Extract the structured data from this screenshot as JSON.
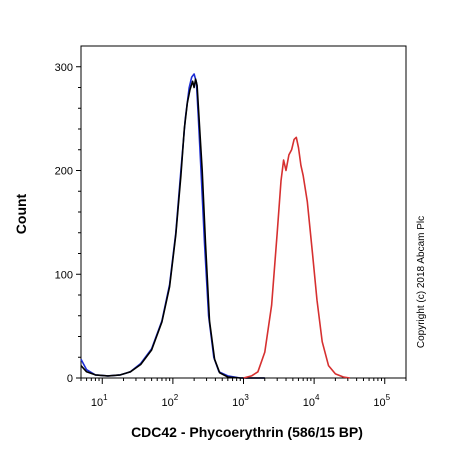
{
  "chart_data": {
    "type": "line",
    "xlabel": "CDC42 - Phycoerythrin (586/15 BP)",
    "ylabel": "Count",
    "x_scale": "log",
    "xlim": [
      5,
      200000
    ],
    "ylim": [
      0,
      320
    ],
    "y_ticks": [
      {
        "value": 0,
        "label": "0"
      },
      {
        "value": 100,
        "label": "100"
      },
      {
        "value": 200,
        "label": "200"
      },
      {
        "value": 300,
        "label": "300"
      }
    ],
    "x_ticks": [
      {
        "value": 10,
        "base": "10",
        "exp": "1"
      },
      {
        "value": 100,
        "base": "10",
        "exp": "2"
      },
      {
        "value": 1000,
        "base": "10",
        "exp": "3"
      },
      {
        "value": 10000,
        "base": "10",
        "exp": "4"
      },
      {
        "value": 100000,
        "base": "10",
        "exp": "5"
      }
    ],
    "annotation": "Copyright (c) 2018 Abcam Plc",
    "grid": false,
    "series": [
      {
        "color": "#1f2fd6",
        "points": [
          [
            5,
            18
          ],
          [
            6,
            8
          ],
          [
            8,
            3
          ],
          [
            12,
            2
          ],
          [
            18,
            3
          ],
          [
            25,
            6
          ],
          [
            35,
            14
          ],
          [
            50,
            28
          ],
          [
            70,
            55
          ],
          [
            90,
            90
          ],
          [
            110,
            140
          ],
          [
            130,
            200
          ],
          [
            150,
            250
          ],
          [
            170,
            280
          ],
          [
            185,
            290
          ],
          [
            200,
            293
          ],
          [
            215,
            285
          ],
          [
            230,
            250
          ],
          [
            250,
            200
          ],
          [
            280,
            130
          ],
          [
            320,
            60
          ],
          [
            380,
            20
          ],
          [
            450,
            6
          ],
          [
            600,
            2
          ],
          [
            900,
            0
          ],
          [
            2000,
            0
          ]
        ]
      },
      {
        "color": "#000000",
        "points": [
          [
            5,
            12
          ],
          [
            6,
            6
          ],
          [
            8,
            3
          ],
          [
            12,
            2
          ],
          [
            18,
            3
          ],
          [
            25,
            6
          ],
          [
            35,
            13
          ],
          [
            50,
            27
          ],
          [
            70,
            54
          ],
          [
            90,
            88
          ],
          [
            110,
            138
          ],
          [
            130,
            195
          ],
          [
            145,
            240
          ],
          [
            160,
            265
          ],
          [
            175,
            278
          ],
          [
            190,
            286
          ],
          [
            200,
            280
          ],
          [
            210,
            288
          ],
          [
            220,
            282
          ],
          [
            240,
            240
          ],
          [
            260,
            200
          ],
          [
            290,
            130
          ],
          [
            330,
            55
          ],
          [
            390,
            18
          ],
          [
            460,
            5
          ],
          [
            600,
            1
          ],
          [
            900,
            0
          ],
          [
            2000,
            0
          ]
        ]
      },
      {
        "color": "#d63030",
        "points": [
          [
            1000,
            0
          ],
          [
            1300,
            2
          ],
          [
            1600,
            6
          ],
          [
            2000,
            25
          ],
          [
            2500,
            70
          ],
          [
            3000,
            140
          ],
          [
            3400,
            190
          ],
          [
            3700,
            210
          ],
          [
            4000,
            200
          ],
          [
            4400,
            215
          ],
          [
            4800,
            220
          ],
          [
            5200,
            230
          ],
          [
            5600,
            232
          ],
          [
            6000,
            222
          ],
          [
            6500,
            205
          ],
          [
            7000,
            195
          ],
          [
            8000,
            170
          ],
          [
            9500,
            120
          ],
          [
            11000,
            75
          ],
          [
            13000,
            35
          ],
          [
            16000,
            12
          ],
          [
            20000,
            4
          ],
          [
            26000,
            1
          ],
          [
            32000,
            0
          ]
        ]
      }
    ]
  }
}
